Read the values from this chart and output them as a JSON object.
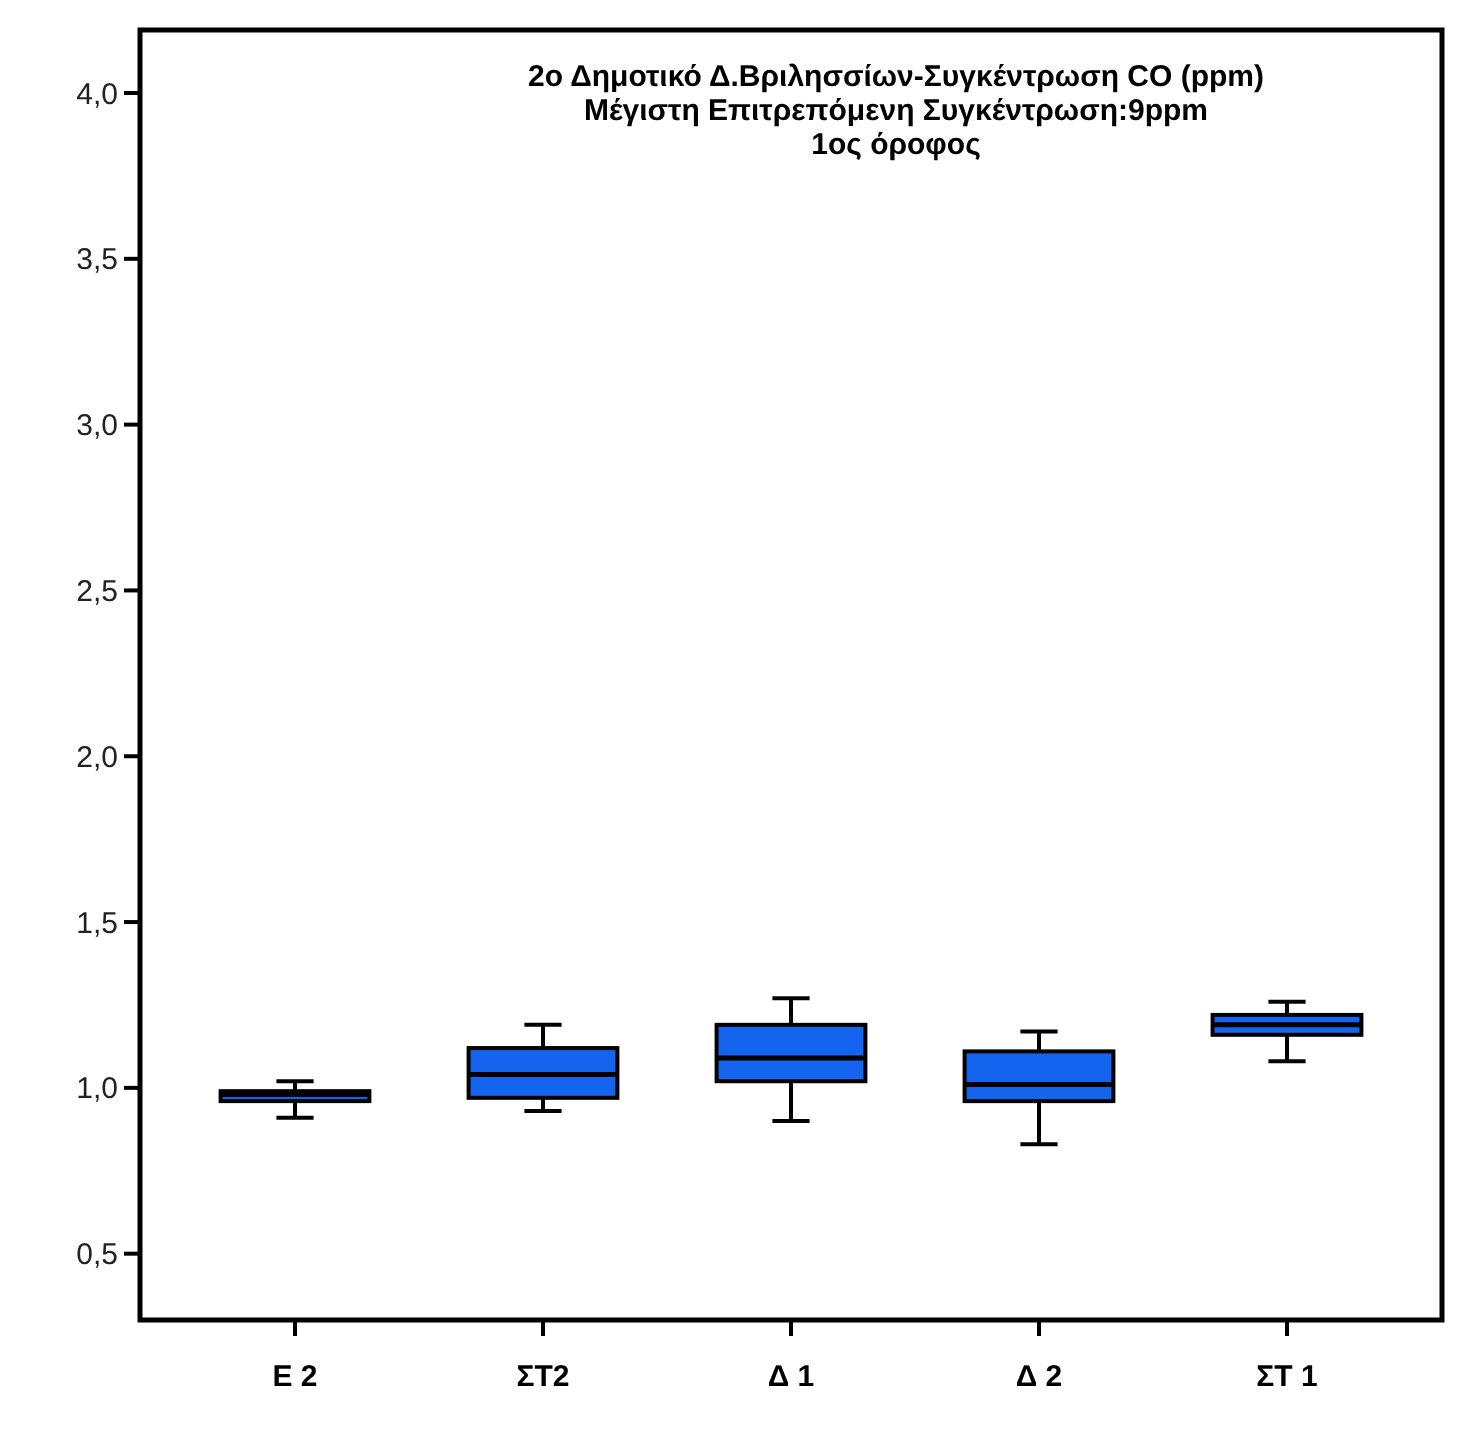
{
  "chart_data": {
    "type": "box",
    "title": "2ο Δημοτικό Δ.Βριλησσίων-Συγκέντρωση CO (ppm)\nΜέγιστη Επιτρεπόμενη Συγκέντρωση:9ppm\n1ος όροφος",
    "categories": [
      "Ε 2",
      "ΣΤ2",
      "Δ 1",
      "Δ 2",
      "ΣΤ 1"
    ],
    "color": "#1464f0",
    "boxes": [
      {
        "low": 0.91,
        "q1": 0.96,
        "median": 0.98,
        "q3": 0.99,
        "high": 1.02
      },
      {
        "low": 0.93,
        "q1": 0.97,
        "median": 1.04,
        "q3": 1.12,
        "high": 1.19
      },
      {
        "low": 0.9,
        "q1": 1.02,
        "median": 1.09,
        "q3": 1.19,
        "high": 1.27
      },
      {
        "low": 0.83,
        "q1": 0.96,
        "median": 1.01,
        "q3": 1.11,
        "high": 1.17
      },
      {
        "low": 1.08,
        "q1": 1.16,
        "median": 1.19,
        "q3": 1.22,
        "high": 1.26
      }
    ],
    "ylim": [
      0.3,
      4.19
    ],
    "yticks": [
      {
        "value": 0.5,
        "label": "0,5"
      },
      {
        "value": 1,
        "label": "1,0"
      },
      {
        "value": 1.5,
        "label": "1,5"
      },
      {
        "value": 2,
        "label": "2,0"
      },
      {
        "value": 2.5,
        "label": "2,5"
      },
      {
        "value": 3,
        "label": "3,0"
      },
      {
        "value": 3.5,
        "label": "3,5"
      },
      {
        "value": 4,
        "label": "4,0"
      }
    ],
    "grid": false
  }
}
